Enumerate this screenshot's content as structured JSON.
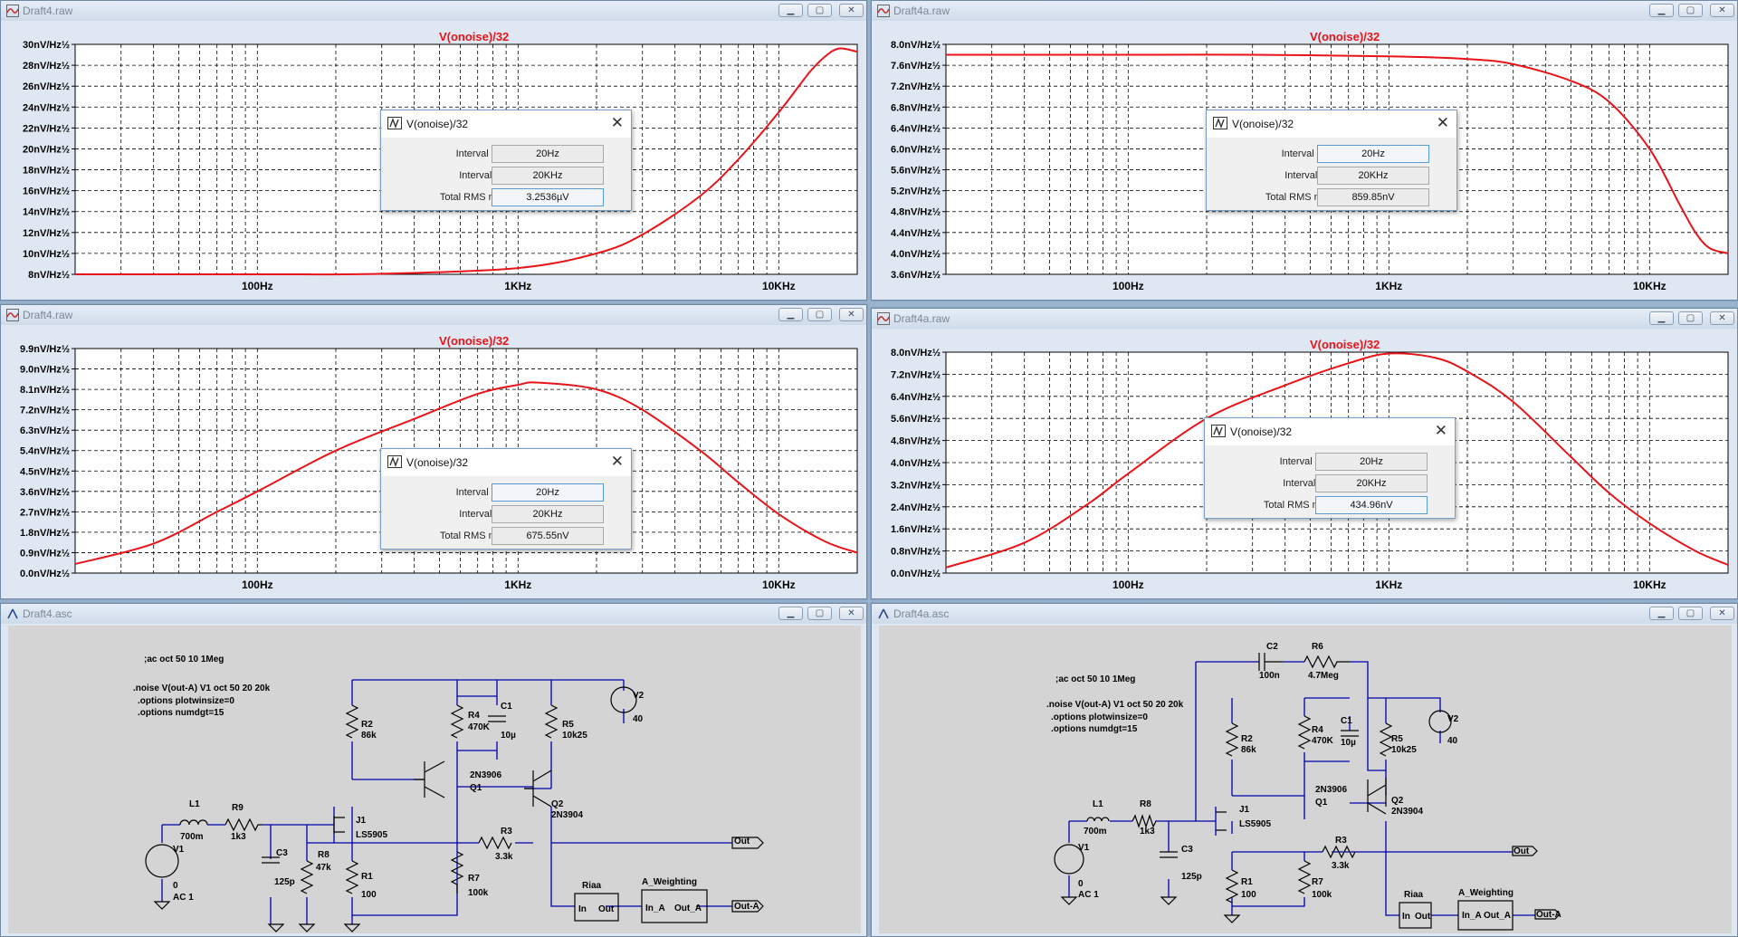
{
  "colors": {
    "trace": "#e8141a",
    "grid": "#000000",
    "wire": "#0000aa",
    "background": "#ffffff"
  },
  "windows": [
    {
      "title": "Draft4.raw",
      "plot_title": "V(onoise)/32",
      "y_ticks": [
        "30nV/Hz½",
        "28nV/Hz½",
        "26nV/Hz½",
        "24nV/Hz½",
        "22nV/Hz½",
        "20nV/Hz½",
        "18nV/Hz½",
        "16nV/Hz½",
        "14nV/Hz½",
        "12nV/Hz½",
        "10nV/Hz½",
        "8nV/Hz½"
      ],
      "x_ticks": [
        "100Hz",
        "1KHz",
        "10KHz"
      ],
      "dialog": {
        "title": "V(onoise)/32",
        "interval_start_label": "Interval Start:",
        "interval_start": "20Hz",
        "interval_end_label": "Interval End:",
        "interval_end": "20KHz",
        "rms_label": "Total RMS noise:",
        "rms": "3.2536µV"
      }
    },
    {
      "title": "Draft4a.raw",
      "plot_title": "V(onoise)/32",
      "y_ticks": [
        "8.0nV/Hz½",
        "7.6nV/Hz½",
        "7.2nV/Hz½",
        "6.8nV/Hz½",
        "6.4nV/Hz½",
        "6.0nV/Hz½",
        "5.6nV/Hz½",
        "5.2nV/Hz½",
        "4.8nV/Hz½",
        "4.4nV/Hz½",
        "4.0nV/Hz½",
        "3.6nV/Hz½"
      ],
      "x_ticks": [
        "100Hz",
        "1KHz",
        "10KHz"
      ],
      "dialog": {
        "title": "V(onoise)/32",
        "interval_start_label": "Interval Start:",
        "interval_start": "20Hz",
        "interval_end_label": "Interval End:",
        "interval_end": "20KHz",
        "rms_label": "Total RMS noise:",
        "rms": "859.85nV"
      }
    },
    {
      "title": "Draft4.raw",
      "plot_title": "V(onoise)/32",
      "y_ticks": [
        "9.9nV/Hz½",
        "9.0nV/Hz½",
        "8.1nV/Hz½",
        "7.2nV/Hz½",
        "6.3nV/Hz½",
        "5.4nV/Hz½",
        "4.5nV/Hz½",
        "3.6nV/Hz½",
        "2.7nV/Hz½",
        "1.8nV/Hz½",
        "0.9nV/Hz½",
        "0.0nV/Hz½"
      ],
      "x_ticks": [
        "100Hz",
        "1KHz",
        "10KHz"
      ],
      "dialog": {
        "title": "V(onoise)/32",
        "interval_start_label": "Interval Start:",
        "interval_start": "20Hz",
        "interval_end_label": "Interval End:",
        "interval_end": "20KHz",
        "rms_label": "Total RMS noise:",
        "rms": "675.55nV"
      }
    },
    {
      "title": "Draft4a.raw",
      "plot_title": "V(onoise)/32",
      "y_ticks": [
        "8.0nV/Hz½",
        "7.2nV/Hz½",
        "6.4nV/Hz½",
        "5.6nV/Hz½",
        "4.8nV/Hz½",
        "4.0nV/Hz½",
        "3.2nV/Hz½",
        "2.4nV/Hz½",
        "1.6nV/Hz½",
        "0.8nV/Hz½",
        "0.0nV/Hz½"
      ],
      "x_ticks": [
        "100Hz",
        "1KHz",
        "10KHz"
      ],
      "dialog": {
        "title": "V(onoise)/32",
        "interval_start_label": "Interval Start:",
        "interval_start": "20Hz",
        "interval_end_label": "Interval End:",
        "interval_end": "20KHz",
        "rms_label": "Total RMS noise:",
        "rms": "434.96nV"
      }
    },
    {
      "title": "Draft4.asc"
    },
    {
      "title": "Draft4a.asc"
    }
  ],
  "chart_data": [
    {
      "type": "line",
      "title": "V(onoise)/32",
      "ylabel": "nV/Hz½",
      "x_scale": "log",
      "xlim": [
        20,
        20000
      ],
      "ylim": [
        8,
        30
      ],
      "x": [
        20,
        100,
        300,
        1000,
        2000,
        3000,
        5000,
        7000,
        10000,
        13000,
        15000,
        17000,
        20000
      ],
      "series": [
        {
          "values": [
            8.0,
            8.0,
            8.05,
            8.6,
            10.0,
            11.8,
            15.5,
            19.0,
            23.5,
            27.2,
            28.8,
            29.6,
            29.3
          ]
        }
      ]
    },
    {
      "type": "line",
      "title": "V(onoise)/32",
      "ylabel": "nV/Hz½",
      "x_scale": "log",
      "xlim": [
        20,
        20000
      ],
      "ylim": [
        3.6,
        8.0
      ],
      "x": [
        20,
        100,
        300,
        1000,
        2000,
        3000,
        5000,
        7000,
        10000,
        13000,
        15000,
        17000,
        20000
      ],
      "series": [
        {
          "values": [
            7.8,
            7.8,
            7.8,
            7.77,
            7.72,
            7.62,
            7.3,
            6.9,
            6.0,
            4.95,
            4.4,
            4.1,
            4.0
          ]
        }
      ]
    },
    {
      "type": "line",
      "title": "V(onoise)/32",
      "ylabel": "nV/Hz½",
      "x_scale": "log",
      "xlim": [
        20,
        20000
      ],
      "ylim": [
        0.0,
        9.9
      ],
      "x": [
        20,
        40,
        70,
        100,
        200,
        400,
        700,
        1000,
        1200,
        2000,
        3000,
        5000,
        7000,
        10000,
        15000,
        20000
      ],
      "series": [
        {
          "values": [
            0.4,
            1.3,
            2.7,
            3.6,
            5.4,
            6.8,
            7.9,
            8.3,
            8.4,
            8.1,
            7.2,
            5.4,
            4.0,
            2.6,
            1.4,
            0.9
          ]
        }
      ]
    },
    {
      "type": "line",
      "title": "V(onoise)/32",
      "ylabel": "nV/Hz½",
      "x_scale": "log",
      "xlim": [
        20,
        20000
      ],
      "ylim": [
        0.0,
        8.0
      ],
      "x": [
        20,
        40,
        70,
        100,
        200,
        400,
        700,
        1000,
        1500,
        2000,
        3000,
        5000,
        7000,
        10000,
        15000,
        20000
      ],
      "series": [
        {
          "values": [
            0.2,
            1.1,
            2.5,
            3.6,
            5.6,
            6.8,
            7.6,
            7.95,
            7.8,
            7.3,
            6.2,
            4.2,
            2.9,
            1.8,
            0.8,
            0.3
          ]
        }
      ]
    }
  ],
  "schematic_left": {
    "directives": [
      ";ac oct 50 10 1Meg",
      ".noise V(out-A) V1 oct 50 20 20k",
      ".options plotwinsize=0",
      ".options numdgt=15"
    ],
    "parts": {
      "L1": "L1",
      "L1v": "700m",
      "R9": "R9",
      "R9v": "1k3",
      "V1": "V1",
      "V1a": "0",
      "V1b": "AC 1",
      "C3": "C3",
      "C3v": "125p",
      "R8": "R8",
      "R8v": "47k",
      "J1": "J1",
      "J1v": "LS5905",
      "R2": "R2",
      "R2v": "86k",
      "R1": "R1",
      "R1v": "100",
      "R4": "R4",
      "R4v": "470K",
      "C1": "C1",
      "C1v": "10µ",
      "Q1v": "2N3906",
      "Q1": "Q1",
      "R5": "R5",
      "R5v": "10k25",
      "V2": "V2",
      "V2v": "40",
      "Q2": "Q2",
      "Q2v": "2N3904",
      "R3": "R3",
      "R3v": "3.3k",
      "R7": "R7",
      "R7v": "100k",
      "out": "Out",
      "riaa": "Riaa",
      "riaa_in": "In",
      "riaa_out": "Out",
      "aw": "A_Weighting",
      "aw_in": "In_A",
      "aw_out": "Out_A",
      "outa": "Out-A"
    }
  },
  "schematic_right": {
    "directives": [
      ";ac oct 50 10 1Meg",
      ".noise V(out-A) V1 oct 50 20 20k",
      ".options plotwinsize=0",
      ".options numdgt=15"
    ],
    "parts": {
      "C2": "C2",
      "C2v": "100n",
      "R6": "R6",
      "R6v": "4.7Meg",
      "L1": "L1",
      "L1v": "700m",
      "R8": "R8",
      "R8v": "1k3",
      "V1": "V1",
      "V1a": "0",
      "V1b": "AC 1",
      "C3": "C3",
      "C3v": "125p",
      "J1": "J1",
      "J1v": "LS5905",
      "R2": "R2",
      "R2v": "86k",
      "R1": "R1",
      "R1v": "100",
      "R4": "R4",
      "R4v": "470K",
      "C1": "C1",
      "C1v": "10µ",
      "Q1v": "2N3906",
      "Q1": "Q1",
      "R5": "R5",
      "R5v": "10k25",
      "V2": "V2",
      "V2v": "40",
      "Q2": "Q2",
      "Q2v": "2N3904",
      "R3": "R3",
      "R3v": "3.3k",
      "R7": "R7",
      "R7v": "100k",
      "out": "Out",
      "riaa": "Riaa",
      "riaa_in": "In",
      "riaa_out": "Out",
      "aw": "A_Weighting",
      "aw_in": "In_A",
      "aw_out": "Out_A",
      "outa": "Out-A"
    }
  }
}
